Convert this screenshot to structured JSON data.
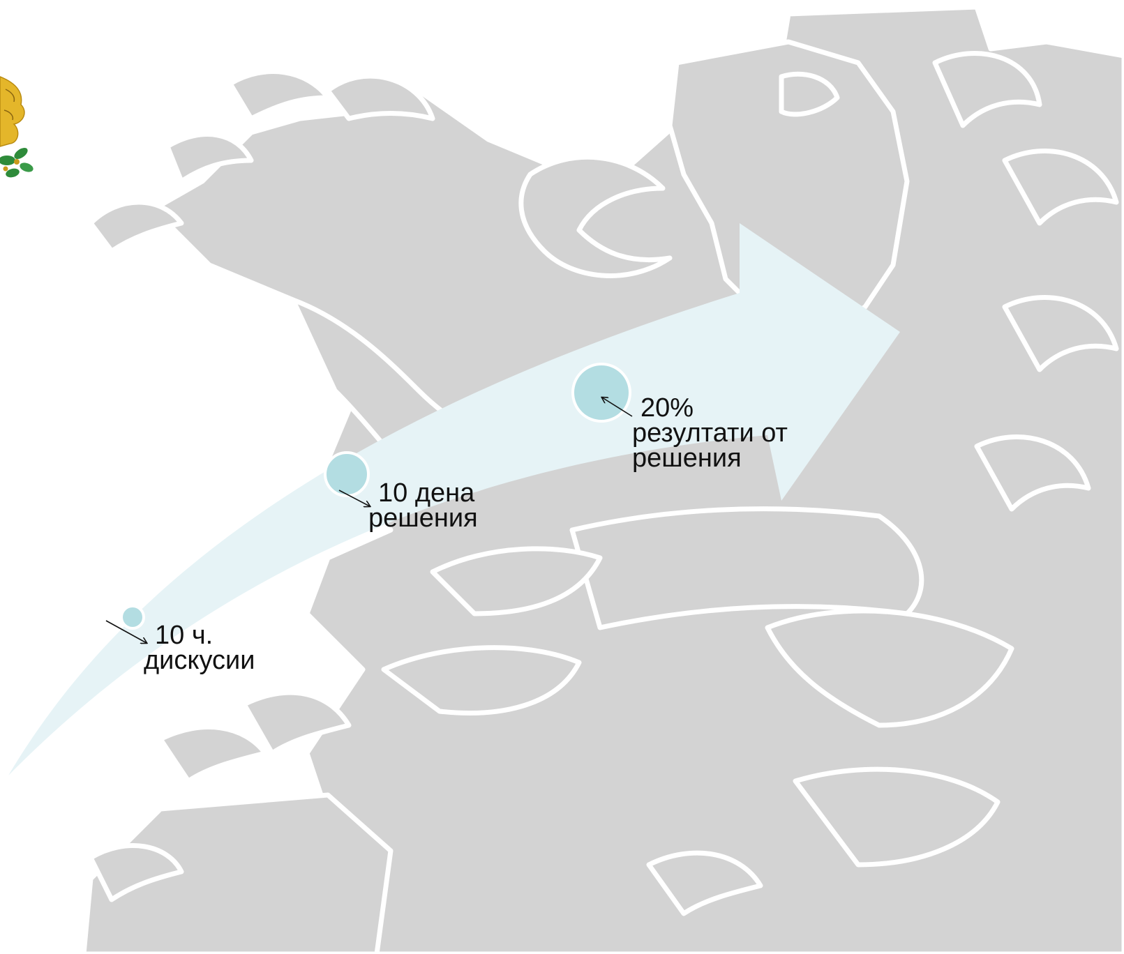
{
  "diagram": {
    "milestones": [
      {
        "line1": "10 ч.",
        "line2": "дискусии"
      },
      {
        "line1": "10 дена",
        "line2": "решения"
      },
      {
        "line1": "20%",
        "line2": "резултати от",
        "line3": "решения"
      }
    ]
  },
  "colors": {
    "background_lion": "#d3d3d3",
    "lion_outline": "#ffffff",
    "arrow_fill": "#e6f3f6",
    "circle_fill": "#b3dde2",
    "text": "#111111",
    "emblem_gold": "#e4b62a",
    "emblem_green": "#2e8b3a"
  },
  "icons": {
    "background": "lion-silhouette",
    "emblem": "coat-of-arms-icon"
  }
}
